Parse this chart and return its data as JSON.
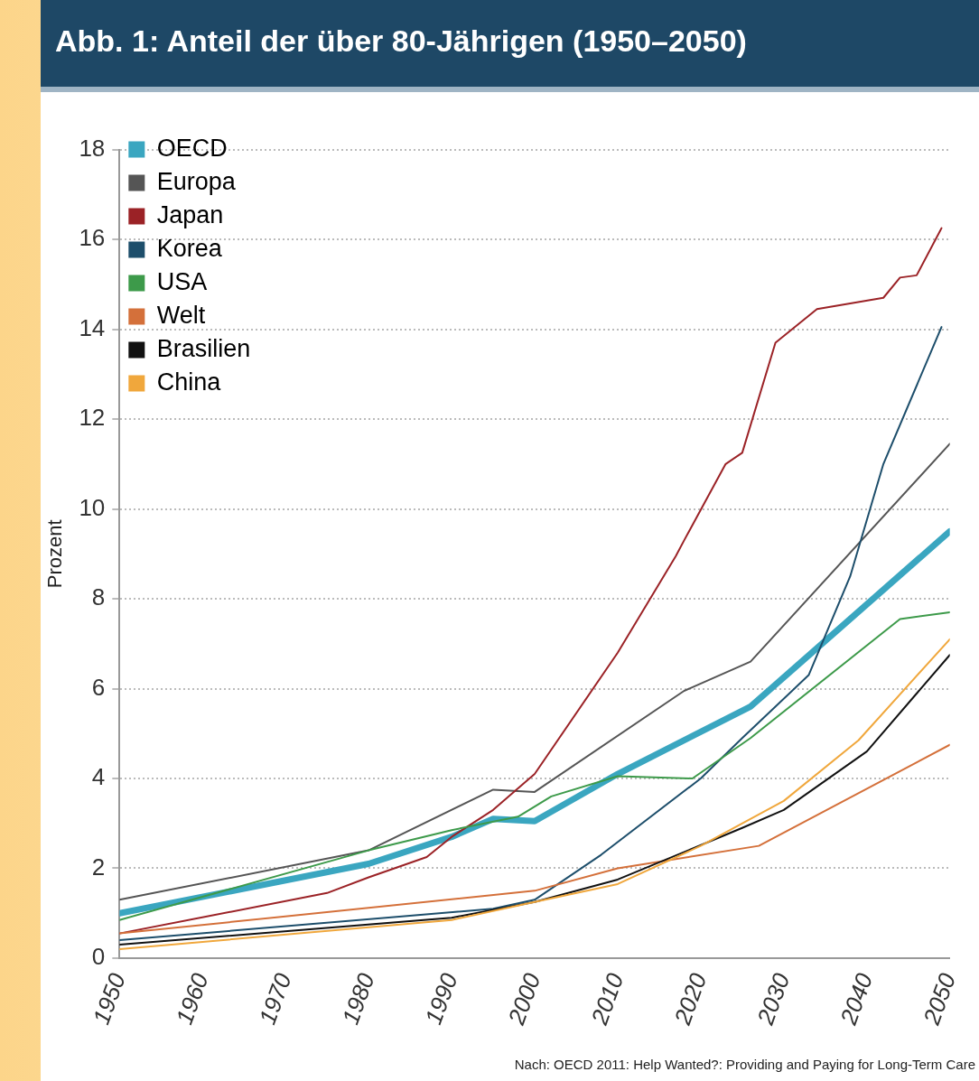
{
  "chart_data": {
    "type": "line",
    "title": "Abb. 1: Anteil der über 80-Jährigen (1950–2050)",
    "ylabel": "Prozent",
    "xlim": [
      1950,
      2050
    ],
    "xticks": [
      1950,
      1960,
      1970,
      1980,
      1990,
      2000,
      2010,
      2020,
      2030,
      2040,
      2050
    ],
    "ylim": [
      0,
      18
    ],
    "yticks": [
      0,
      2,
      4,
      6,
      8,
      10,
      12,
      14,
      16,
      18
    ],
    "grid": "y",
    "legend": "top left",
    "marker": "none",
    "line_style": "solid",
    "annotations": [
      "Nach: OECD 2011: Help Wanted?: Providing and Paying for Long-Term Care"
    ],
    "series": [
      {
        "name": "OECD",
        "color": "#3aa6c0",
        "x": [
          1950,
          1980,
          1990,
          1995,
          2000,
          2010,
          2026,
          2050
        ],
        "values": [
          1.0,
          2.1,
          2.7,
          3.1,
          3.05,
          4.1,
          5.6,
          9.5
        ]
      },
      {
        "name": "Europa",
        "color": "#555555",
        "x": [
          1950,
          1980,
          1995,
          2000,
          2018,
          2026,
          2050
        ],
        "values": [
          1.3,
          2.4,
          3.75,
          3.7,
          5.95,
          6.6,
          11.45
        ]
      },
      {
        "name": "Japan",
        "color": "#9b2226",
        "x": [
          1950,
          1975,
          1980,
          1987,
          1990,
          1995,
          2000,
          2010,
          2017,
          2018,
          2023,
          2025,
          2029,
          2034,
          2042,
          2044,
          2046,
          2049
        ],
        "values": [
          0.55,
          1.45,
          1.8,
          2.25,
          2.7,
          3.3,
          4.1,
          6.8,
          8.95,
          9.3,
          11.0,
          11.25,
          13.7,
          14.45,
          14.7,
          15.15,
          15.2,
          16.25
        ]
      },
      {
        "name": "Korea",
        "color": "#1d4e6b",
        "x": [
          1950,
          1995,
          2000,
          2008,
          2020,
          2025,
          2033,
          2038,
          2042,
          2049
        ],
        "values": [
          0.4,
          1.1,
          1.3,
          2.3,
          4.0,
          4.9,
          6.3,
          8.5,
          11.0,
          14.05
        ]
      },
      {
        "name": "USA",
        "color": "#3d9a4a",
        "x": [
          1950,
          1980,
          1990,
          1998,
          2002,
          2010,
          2019,
          2026,
          2044,
          2050
        ],
        "values": [
          0.85,
          2.4,
          2.85,
          3.15,
          3.6,
          4.05,
          4.0,
          4.9,
          7.55,
          7.7
        ]
      },
      {
        "name": "Welt",
        "color": "#d4703a",
        "x": [
          1950,
          2000,
          2010,
          2027,
          2050
        ],
        "values": [
          0.55,
          1.5,
          2.0,
          2.5,
          4.75
        ]
      },
      {
        "name": "Brasilien",
        "color": "#111111",
        "x": [
          1950,
          1990,
          2000,
          2010,
          2025,
          2030,
          2040,
          2050
        ],
        "values": [
          0.3,
          0.9,
          1.25,
          1.75,
          2.9,
          3.3,
          4.6,
          6.75
        ]
      },
      {
        "name": "China",
        "color": "#f0a73c",
        "x": [
          1950,
          1990,
          2000,
          2010,
          2020,
          2030,
          2039,
          2050
        ],
        "values": [
          0.2,
          0.85,
          1.25,
          1.65,
          2.5,
          3.5,
          4.85,
          7.1
        ]
      }
    ]
  }
}
